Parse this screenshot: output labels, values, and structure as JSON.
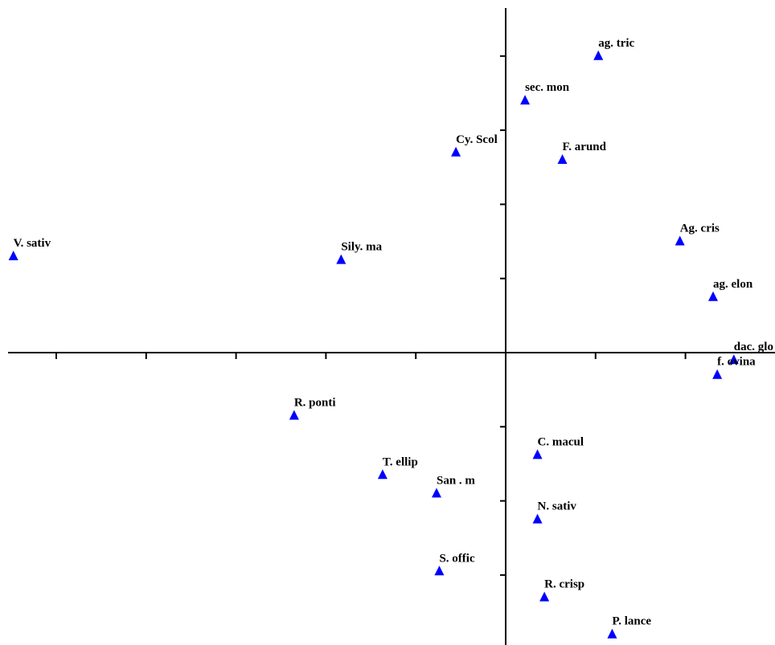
{
  "chart_data": {
    "type": "scatter",
    "title": "",
    "xlabel": "",
    "ylabel": "",
    "grid": false,
    "legend": "none",
    "marker": "triangle",
    "marker_color": "#0000ff",
    "xlim": [
      -3.6,
      1.9
    ],
    "ylim": [
      -3.8,
      4.4
    ],
    "points": [
      {
        "label": "ag. tric",
        "x": 0.67,
        "y": 4.0
      },
      {
        "label": "sec. mon",
        "x": 0.14,
        "y": 3.4
      },
      {
        "label": "Cy. Scol",
        "x": -0.36,
        "y": 2.7
      },
      {
        "label": "F. arund",
        "x": 0.41,
        "y": 2.6
      },
      {
        "label": "Ag. cris",
        "x": 1.26,
        "y": 1.5
      },
      {
        "label": "V. sativ",
        "x": -3.56,
        "y": 1.3
      },
      {
        "label": "Sily. ma",
        "x": -1.19,
        "y": 1.25
      },
      {
        "label": "ag. elon",
        "x": 1.5,
        "y": 0.75
      },
      {
        "label": "dac. glo",
        "x": 1.65,
        "y": -0.1
      },
      {
        "label": "f. ovina",
        "x": 1.53,
        "y": -0.3
      },
      {
        "label": "R. ponti",
        "x": -1.53,
        "y": -0.85
      },
      {
        "label": "C. macul",
        "x": 0.23,
        "y": -1.38
      },
      {
        "label": "T. ellip",
        "x": -0.89,
        "y": -1.65
      },
      {
        "label": "San .  m",
        "x": -0.5,
        "y": -1.9
      },
      {
        "label": "N. sativ",
        "x": 0.23,
        "y": -2.25
      },
      {
        "label": "S. offic",
        "x": -0.48,
        "y": -2.95
      },
      {
        "label": "R. crisp",
        "x": 0.28,
        "y": -3.3
      },
      {
        "label": "P. lance",
        "x": 0.77,
        "y": -3.8
      }
    ]
  }
}
